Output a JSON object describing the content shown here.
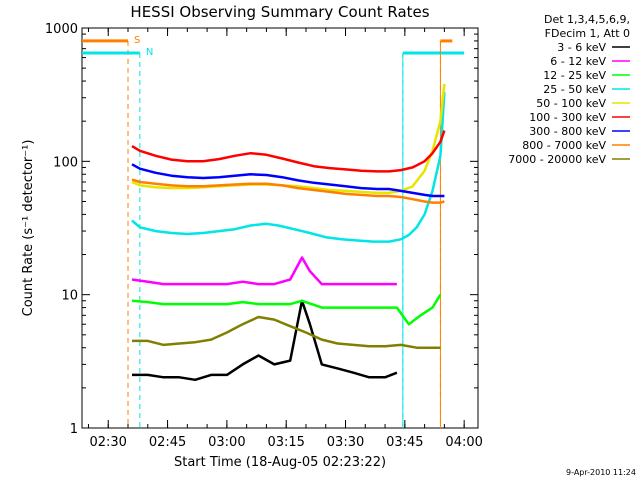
{
  "chart_data": {
    "type": "line",
    "title": "HESSI Observing Summary Count Rates",
    "xlabel": "Start Time (18-Aug-05 02:23:22)",
    "ylabel": "Count Rate (s⁻¹ detector⁻¹)",
    "y_scale": "log",
    "ylim": [
      1,
      1000
    ],
    "xlim": [
      "02:23:22",
      "04:03:30"
    ],
    "x_ticks": [
      "02:30",
      "02:45",
      "03:00",
      "03:15",
      "03:30",
      "03:45",
      "04:00"
    ],
    "y_ticks": [
      "1",
      "10",
      "100",
      "1000"
    ],
    "legend_header": [
      "Det 1,3,4,5,6,9,",
      "FDecim 1, Att 0"
    ],
    "legend_position": "right, outside plot",
    "timestamp": "9-Apr-2010 11:24",
    "markers": [
      {
        "label": "S",
        "color": "#ff8000",
        "level": 800,
        "intervals": [
          [
            "02:23:22",
            "02:35:00"
          ],
          [
            "03:54:00",
            "03:57:00"
          ]
        ],
        "edges": [
          "02:35:00",
          "03:54:00"
        ]
      },
      {
        "label": "N",
        "color": "#00e5e5",
        "level": 650,
        "intervals": [
          [
            "02:23:22",
            "02:38:00"
          ],
          [
            "03:44:30",
            "04:00:00"
          ]
        ],
        "edges": [
          "02:38:00",
          "03:44:30"
        ]
      }
    ],
    "series": [
      {
        "name": "3 - 6 keV",
        "color": "#000000",
        "points": [
          [
            "02:36",
            "2.5"
          ],
          [
            "02:40",
            "2.5"
          ],
          [
            "02:44",
            "2.4"
          ],
          [
            "02:48",
            "2.4"
          ],
          [
            "02:52",
            "2.3"
          ],
          [
            "02:56",
            "2.5"
          ],
          [
            "03:00",
            "2.5"
          ],
          [
            "03:04",
            "3.0"
          ],
          [
            "03:08",
            "3.5"
          ],
          [
            "03:12",
            "3.0"
          ],
          [
            "03:16",
            "3.2"
          ],
          [
            "03:19",
            "9.0"
          ],
          [
            "03:21",
            "6.0"
          ],
          [
            "03:24",
            "3.0"
          ],
          [
            "03:28",
            "2.8"
          ],
          [
            "03:32",
            "2.6"
          ],
          [
            "03:36",
            "2.4"
          ],
          [
            "03:40",
            "2.4"
          ],
          [
            "03:43",
            "2.6"
          ]
        ]
      },
      {
        "name": "6 - 12 keV",
        "color": "#ff00ff",
        "points": [
          [
            "02:36",
            "13"
          ],
          [
            "02:40",
            "12.5"
          ],
          [
            "02:44",
            "12"
          ],
          [
            "02:48",
            "12"
          ],
          [
            "02:52",
            "12"
          ],
          [
            "02:56",
            "12"
          ],
          [
            "03:00",
            "12"
          ],
          [
            "03:04",
            "12.5"
          ],
          [
            "03:08",
            "12"
          ],
          [
            "03:12",
            "12"
          ],
          [
            "03:16",
            "13"
          ],
          [
            "03:19",
            "19"
          ],
          [
            "03:21",
            "15"
          ],
          [
            "03:24",
            "12"
          ],
          [
            "03:28",
            "12"
          ],
          [
            "03:32",
            "12"
          ],
          [
            "03:36",
            "12"
          ],
          [
            "03:40",
            "12"
          ],
          [
            "03:43",
            "12"
          ]
        ]
      },
      {
        "name": "12 - 25 keV",
        "color": "#00ff00",
        "points": [
          [
            "02:36",
            "9"
          ],
          [
            "02:40",
            "8.8"
          ],
          [
            "02:44",
            "8.5"
          ],
          [
            "02:48",
            "8.5"
          ],
          [
            "02:52",
            "8.5"
          ],
          [
            "02:56",
            "8.5"
          ],
          [
            "03:00",
            "8.5"
          ],
          [
            "03:04",
            "8.8"
          ],
          [
            "03:08",
            "8.5"
          ],
          [
            "03:12",
            "8.5"
          ],
          [
            "03:16",
            "8.5"
          ],
          [
            "03:19",
            "9"
          ],
          [
            "03:24",
            "8"
          ],
          [
            "03:28",
            "8"
          ],
          [
            "03:32",
            "8"
          ],
          [
            "03:36",
            "8"
          ],
          [
            "03:40",
            "8"
          ],
          [
            "03:43",
            "8"
          ],
          [
            "03:46",
            "6"
          ],
          [
            "03:49",
            "7"
          ],
          [
            "03:52",
            "8"
          ],
          [
            "03:54",
            "10"
          ]
        ]
      },
      {
        "name": "25 - 50 keV",
        "color": "#00e5e5",
        "points": [
          [
            "02:36",
            "36"
          ],
          [
            "02:38",
            "32"
          ],
          [
            "02:42",
            "30"
          ],
          [
            "02:46",
            "29"
          ],
          [
            "02:50",
            "28.5"
          ],
          [
            "02:54",
            "29"
          ],
          [
            "02:58",
            "30"
          ],
          [
            "03:02",
            "31"
          ],
          [
            "03:06",
            "33"
          ],
          [
            "03:10",
            "34"
          ],
          [
            "03:13",
            "33"
          ],
          [
            "03:17",
            "31"
          ],
          [
            "03:21",
            "29"
          ],
          [
            "03:25",
            "27"
          ],
          [
            "03:29",
            "26"
          ],
          [
            "03:33",
            "25.5"
          ],
          [
            "03:37",
            "25"
          ],
          [
            "03:41",
            "25"
          ],
          [
            "03:44",
            "26"
          ],
          [
            "03:46",
            "28"
          ],
          [
            "03:48",
            "32"
          ],
          [
            "03:50",
            "40"
          ],
          [
            "03:52",
            "60"
          ],
          [
            "03:54",
            "110"
          ],
          [
            "03:55",
            "330"
          ]
        ]
      },
      {
        "name": "50 - 100 keV",
        "color": "#e5e500",
        "points": [
          [
            "02:36",
            "70"
          ],
          [
            "02:38",
            "66"
          ],
          [
            "02:42",
            "64"
          ],
          [
            "02:46",
            "63"
          ],
          [
            "02:50",
            "63"
          ],
          [
            "02:54",
            "64"
          ],
          [
            "02:58",
            "65"
          ],
          [
            "03:02",
            "66"
          ],
          [
            "03:06",
            "67"
          ],
          [
            "03:10",
            "67"
          ],
          [
            "03:14",
            "66"
          ],
          [
            "03:18",
            "65"
          ],
          [
            "03:22",
            "63"
          ],
          [
            "03:26",
            "61"
          ],
          [
            "03:30",
            "60"
          ],
          [
            "03:34",
            "59"
          ],
          [
            "03:38",
            "58"
          ],
          [
            "03:41",
            "58"
          ],
          [
            "03:44",
            "60"
          ],
          [
            "03:47",
            "65"
          ],
          [
            "03:50",
            "85"
          ],
          [
            "03:52",
            "120"
          ],
          [
            "03:54",
            "200"
          ],
          [
            "03:55",
            "380"
          ]
        ]
      },
      {
        "name": "100 - 300 keV",
        "color": "#ff0000",
        "points": [
          [
            "02:36",
            "130"
          ],
          [
            "02:38",
            "120"
          ],
          [
            "02:42",
            "110"
          ],
          [
            "02:46",
            "103"
          ],
          [
            "02:50",
            "100"
          ],
          [
            "02:54",
            "100"
          ],
          [
            "02:58",
            "104"
          ],
          [
            "03:02",
            "110"
          ],
          [
            "03:06",
            "115"
          ],
          [
            "03:10",
            "112"
          ],
          [
            "03:14",
            "105"
          ],
          [
            "03:18",
            "98"
          ],
          [
            "03:22",
            "92"
          ],
          [
            "03:26",
            "89"
          ],
          [
            "03:30",
            "87"
          ],
          [
            "03:34",
            "85"
          ],
          [
            "03:38",
            "84"
          ],
          [
            "03:41",
            "84"
          ],
          [
            "03:44",
            "86"
          ],
          [
            "03:47",
            "90"
          ],
          [
            "03:50",
            "100"
          ],
          [
            "03:52",
            "115"
          ],
          [
            "03:54",
            "140"
          ],
          [
            "03:55",
            "170"
          ]
        ]
      },
      {
        "name": "300 - 800 keV",
        "color": "#0000ff",
        "points": [
          [
            "02:36",
            "95"
          ],
          [
            "02:38",
            "88"
          ],
          [
            "02:42",
            "82"
          ],
          [
            "02:46",
            "78"
          ],
          [
            "02:50",
            "76"
          ],
          [
            "02:54",
            "75"
          ],
          [
            "02:58",
            "76"
          ],
          [
            "03:02",
            "78"
          ],
          [
            "03:06",
            "80"
          ],
          [
            "03:10",
            "79"
          ],
          [
            "03:14",
            "76"
          ],
          [
            "03:18",
            "72"
          ],
          [
            "03:22",
            "69"
          ],
          [
            "03:26",
            "67"
          ],
          [
            "03:30",
            "65"
          ],
          [
            "03:34",
            "63"
          ],
          [
            "03:38",
            "62"
          ],
          [
            "03:41",
            "62"
          ],
          [
            "03:44",
            "60"
          ],
          [
            "03:47",
            "58"
          ],
          [
            "03:50",
            "56"
          ],
          [
            "03:52",
            "55"
          ],
          [
            "03:54",
            "55"
          ],
          [
            "03:55",
            "55"
          ]
        ]
      },
      {
        "name": "800 - 7000 keV",
        "color": "#ff8000",
        "points": [
          [
            "02:36",
            "73"
          ],
          [
            "02:38",
            "70"
          ],
          [
            "02:42",
            "68"
          ],
          [
            "02:46",
            "66"
          ],
          [
            "02:50",
            "65"
          ],
          [
            "02:54",
            "65"
          ],
          [
            "02:58",
            "66"
          ],
          [
            "03:02",
            "67"
          ],
          [
            "03:06",
            "68"
          ],
          [
            "03:10",
            "68"
          ],
          [
            "03:14",
            "66"
          ],
          [
            "03:18",
            "63"
          ],
          [
            "03:22",
            "61"
          ],
          [
            "03:26",
            "59"
          ],
          [
            "03:30",
            "57"
          ],
          [
            "03:34",
            "56"
          ],
          [
            "03:38",
            "55"
          ],
          [
            "03:41",
            "55"
          ],
          [
            "03:44",
            "54"
          ],
          [
            "03:47",
            "52"
          ],
          [
            "03:50",
            "50"
          ],
          [
            "03:52",
            "49"
          ],
          [
            "03:54",
            "49"
          ],
          [
            "03:55",
            "50"
          ]
        ]
      },
      {
        "name": "7000 - 20000 keV",
        "color": "#808000",
        "points": [
          [
            "02:36",
            "4.5"
          ],
          [
            "02:40",
            "4.5"
          ],
          [
            "02:44",
            "4.2"
          ],
          [
            "02:48",
            "4.3"
          ],
          [
            "02:52",
            "4.4"
          ],
          [
            "02:56",
            "4.6"
          ],
          [
            "03:00",
            "5.2"
          ],
          [
            "03:04",
            "6.0"
          ],
          [
            "03:08",
            "6.8"
          ],
          [
            "03:12",
            "6.5"
          ],
          [
            "03:16",
            "5.8"
          ],
          [
            "03:20",
            "5.2"
          ],
          [
            "03:24",
            "4.6"
          ],
          [
            "03:28",
            "4.3"
          ],
          [
            "03:32",
            "4.2"
          ],
          [
            "03:36",
            "4.1"
          ],
          [
            "03:40",
            "4.1"
          ],
          [
            "03:44",
            "4.2"
          ],
          [
            "03:48",
            "4.0"
          ],
          [
            "03:52",
            "4.0"
          ],
          [
            "03:54",
            "4.0"
          ]
        ]
      }
    ]
  }
}
